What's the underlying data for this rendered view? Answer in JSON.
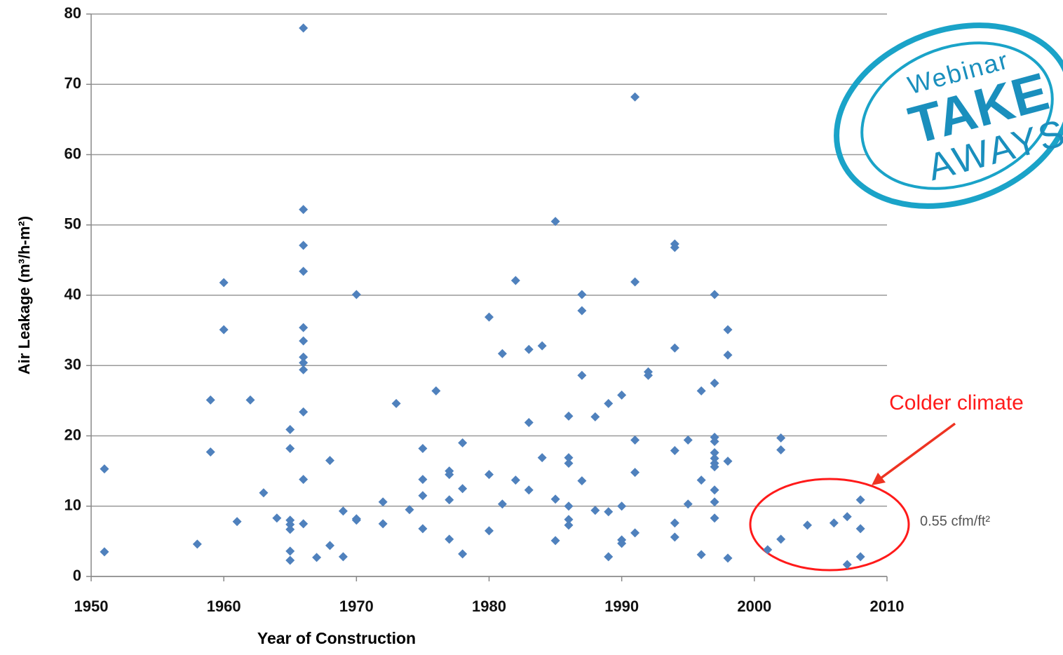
{
  "chart_data": {
    "type": "scatter",
    "xlabel": "Year of Construction",
    "ylabel": "Air Leakage (m³/h-m²)",
    "color": "#4f81bd",
    "grid": true,
    "xlim": [
      1950,
      2010
    ],
    "xticks": [
      1950,
      1960,
      1970,
      1980,
      1990,
      2000,
      2010
    ],
    "ylim": [
      0,
      80
    ],
    "yticks": [
      0,
      10,
      20,
      30,
      40,
      50,
      60,
      70,
      80
    ],
    "x": [
      1951,
      1951,
      1958,
      1959,
      1959,
      1960,
      1960,
      1961,
      1962,
      1963,
      1964,
      1965,
      1965,
      1965,
      1965,
      1965,
      1965,
      1965,
      1966,
      1966,
      1966,
      1966,
      1966,
      1966,
      1966,
      1966,
      1966,
      1966,
      1966,
      1966,
      1967,
      1968,
      1968,
      1969,
      1969,
      1970,
      1970,
      1970,
      1972,
      1972,
      1973,
      1974,
      1975,
      1975,
      1975,
      1975,
      1976,
      1977,
      1977,
      1977,
      1977,
      1978,
      1978,
      1978,
      1980,
      1980,
      1980,
      1981,
      1981,
      1982,
      1982,
      1983,
      1983,
      1983,
      1984,
      1984,
      1985,
      1985,
      1985,
      1986,
      1986,
      1986,
      1986,
      1986,
      1986,
      1987,
      1987,
      1987,
      1987,
      1988,
      1988,
      1989,
      1989,
      1989,
      1990,
      1990,
      1990,
      1990,
      1991,
      1991,
      1991,
      1991,
      1991,
      1992,
      1992,
      1994,
      1994,
      1994,
      1994,
      1994,
      1994,
      1995,
      1995,
      1996,
      1996,
      1996,
      1997,
      1997,
      1997,
      1997,
      1997,
      1997,
      1997,
      1997,
      1997,
      1997,
      1997,
      1998,
      1998,
      1998,
      1998,
      2001,
      2002,
      2002,
      2002,
      2004,
      2006,
      2007,
      2007,
      2008,
      2008,
      2008
    ],
    "values": [
      15.3,
      3.5,
      4.6,
      25.1,
      17.7,
      41.8,
      35.1,
      7.8,
      25.1,
      11.9,
      8.3,
      20.9,
      18.2,
      8.0,
      7.4,
      6.7,
      3.6,
      2.3,
      78,
      52.2,
      47.1,
      43.4,
      35.4,
      33.5,
      31.2,
      30.4,
      29.4,
      23.4,
      13.8,
      7.5,
      2.7,
      4.4,
      16.5,
      9.3,
      2.8,
      40.1,
      8.2,
      8.0,
      10.6,
      7.5,
      24.6,
      9.5,
      18.2,
      13.8,
      11.5,
      6.8,
      26.4,
      15.0,
      14.5,
      10.9,
      5.3,
      19.0,
      12.5,
      3.2,
      36.9,
      14.5,
      6.5,
      31.7,
      10.3,
      42.1,
      13.7,
      32.3,
      21.9,
      12.3,
      32.8,
      16.9,
      50.5,
      11.0,
      5.1,
      22.8,
      16.9,
      16.1,
      10.0,
      8.1,
      7.3,
      40.1,
      37.8,
      28.6,
      13.6,
      22.7,
      9.4,
      24.6,
      9.2,
      2.8,
      25.8,
      10.0,
      5.2,
      4.7,
      68.2,
      41.9,
      19.4,
      14.8,
      6.2,
      29.1,
      28.6,
      47.3,
      46.8,
      32.5,
      17.9,
      7.6,
      5.6,
      19.4,
      10.3,
      26.4,
      13.7,
      3.1,
      40.1,
      27.5,
      19.8,
      19.2,
      17.6,
      16.8,
      16.1,
      15.6,
      12.3,
      10.6,
      8.3,
      35.1,
      31.5,
      16.4,
      2.6,
      3.8,
      19.7,
      18.0,
      5.3,
      7.3,
      7.6,
      8.5,
      1.7,
      10.9,
      6.8,
      2.8
    ],
    "annotations": [
      "Colder climate",
      "0.55 cfm/ft²"
    ]
  },
  "logo": {
    "line1": "Webinar",
    "line2": "TAKE",
    "line3": "AWAYS"
  }
}
